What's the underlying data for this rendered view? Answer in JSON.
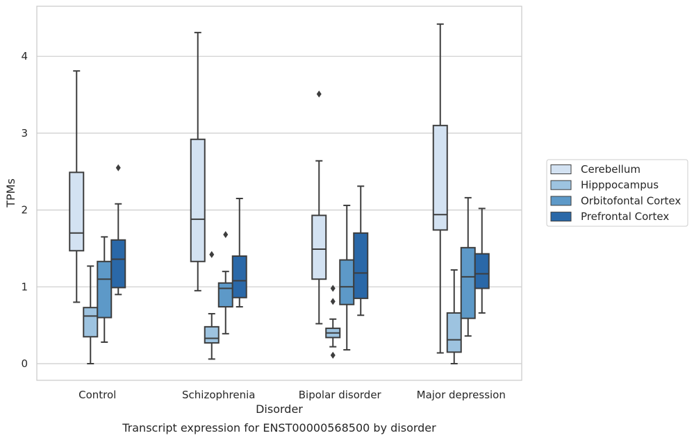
{
  "chart_data": {
    "type": "box",
    "xlabel": "Disorder",
    "ylabel": "TPMs",
    "caption": "Transcript expression for ENST00000568500 by disorder",
    "categories": [
      "Control",
      "Schizophrenia",
      "Bipolar disorder",
      "Major depression"
    ],
    "yticks": [
      0,
      1,
      2,
      3,
      4
    ],
    "ylim": [
      -0.22,
      4.65
    ],
    "grid": "horizontal",
    "legend_position": "right",
    "series": [
      {
        "name": "Cerebellum",
        "color": "#d3e2f2",
        "boxes": [
          {
            "whislo": 0.8,
            "q1": 1.47,
            "med": 1.7,
            "q3": 2.49,
            "whishi": 3.81,
            "fliers": []
          },
          {
            "whislo": 0.95,
            "q1": 1.33,
            "med": 1.88,
            "q3": 2.92,
            "whishi": 4.31,
            "fliers": []
          },
          {
            "whislo": 0.52,
            "q1": 1.1,
            "med": 1.49,
            "q3": 1.93,
            "whishi": 2.64,
            "fliers": [
              3.51
            ]
          },
          {
            "whislo": 0.14,
            "q1": 1.74,
            "med": 1.94,
            "q3": 3.1,
            "whishi": 4.42,
            "fliers": []
          }
        ]
      },
      {
        "name": "Hipppocampus",
        "color": "#9dc3e0",
        "boxes": [
          {
            "whislo": 0.0,
            "q1": 0.35,
            "med": 0.62,
            "q3": 0.73,
            "whishi": 1.27,
            "fliers": []
          },
          {
            "whislo": 0.06,
            "q1": 0.27,
            "med": 0.33,
            "q3": 0.48,
            "whishi": 0.65,
            "fliers": [
              1.42
            ]
          },
          {
            "whislo": 0.22,
            "q1": 0.34,
            "med": 0.4,
            "q3": 0.46,
            "whishi": 0.58,
            "fliers": [
              0.98,
              0.81,
              0.11
            ]
          },
          {
            "whislo": 0.0,
            "q1": 0.15,
            "med": 0.31,
            "q3": 0.66,
            "whishi": 1.22,
            "fliers": []
          }
        ]
      },
      {
        "name": "Orbitofontal Cortex",
        "color": "#5d99c8",
        "boxes": [
          {
            "whislo": 0.28,
            "q1": 0.6,
            "med": 1.1,
            "q3": 1.33,
            "whishi": 1.65,
            "fliers": []
          },
          {
            "whislo": 0.39,
            "q1": 0.74,
            "med": 0.98,
            "q3": 1.05,
            "whishi": 1.2,
            "fliers": [
              1.68
            ]
          },
          {
            "whislo": 0.18,
            "q1": 0.77,
            "med": 1.0,
            "q3": 1.35,
            "whishi": 2.06,
            "fliers": []
          },
          {
            "whislo": 0.36,
            "q1": 0.59,
            "med": 1.13,
            "q3": 1.51,
            "whishi": 2.16,
            "fliers": []
          }
        ]
      },
      {
        "name": "Prefrontal Cortex",
        "color": "#2a68a8",
        "boxes": [
          {
            "whislo": 0.9,
            "q1": 0.99,
            "med": 1.36,
            "q3": 1.61,
            "whishi": 2.08,
            "fliers": [
              2.55
            ]
          },
          {
            "whislo": 0.74,
            "q1": 0.86,
            "med": 1.08,
            "q3": 1.4,
            "whishi": 2.15,
            "fliers": []
          },
          {
            "whislo": 0.63,
            "q1": 0.85,
            "med": 1.18,
            "q3": 1.7,
            "whishi": 2.31,
            "fliers": []
          },
          {
            "whislo": 0.66,
            "q1": 0.98,
            "med": 1.17,
            "q3": 1.43,
            "whishi": 2.02,
            "fliers": []
          }
        ]
      }
    ]
  }
}
